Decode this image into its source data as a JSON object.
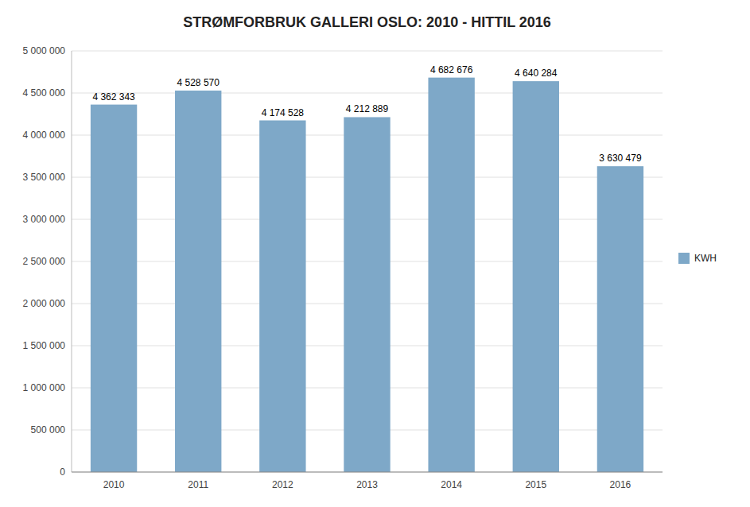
{
  "chart_data": {
    "type": "bar",
    "title": "STRØMFORBRUK GALLERI OSLO: 2010 - HITTIL 2016",
    "categories": [
      "2010",
      "2011",
      "2012",
      "2013",
      "2014",
      "2015",
      "2016"
    ],
    "series": [
      {
        "name": "KWH",
        "color": "#7EA8C8",
        "values": [
          4362343,
          4528570,
          4174528,
          4212889,
          4682676,
          4640284,
          3630479
        ],
        "value_labels": [
          "4 362 343",
          "4 528 570",
          "4 174 528",
          "4 212 889",
          "4 682 676",
          "4 640 284",
          "3 630 479"
        ]
      }
    ],
    "ylim": [
      0,
      5000000
    ],
    "yticks": [
      0,
      {
        "value": 500000,
        "label": "500 000"
      },
      {
        "value": 1000000,
        "label": "1 000 000"
      },
      {
        "value": 1500000,
        "label": "1 500 000"
      },
      {
        "value": 2000000,
        "label": "2 000 000"
      },
      {
        "value": 2500000,
        "label": "2 500 000"
      },
      {
        "value": 3000000,
        "label": "3 000 000"
      },
      {
        "value": 3500000,
        "label": "3 500 000"
      },
      {
        "value": 4000000,
        "label": "4 000 000"
      },
      {
        "value": 4500000,
        "label": "4 500 000"
      },
      {
        "value": 5000000,
        "label": "5 000 000"
      }
    ],
    "grid": true,
    "legend": "right",
    "data_labels": true
  }
}
